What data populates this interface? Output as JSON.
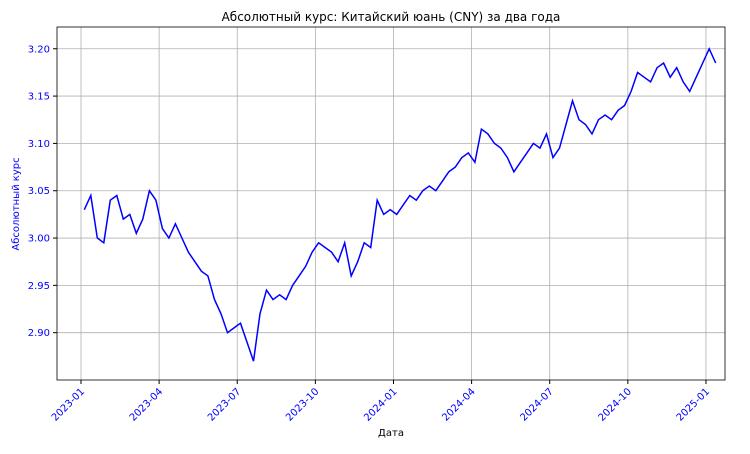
{
  "chart_data": {
    "type": "line",
    "title": "Абсолютный курс: Китайский юань (CNY) за два года",
    "xlabel": "Дата",
    "ylabel": "Абсолютный курс",
    "x": [
      "2023-01",
      "2023-01",
      "2023-01",
      "2023-01",
      "2023-02",
      "2023-02",
      "2023-02",
      "2023-02",
      "2023-03",
      "2023-03",
      "2023-03",
      "2023-03",
      "2023-04",
      "2023-04",
      "2023-04",
      "2023-04",
      "2023-05",
      "2023-05",
      "2023-05",
      "2023-05",
      "2023-06",
      "2023-06",
      "2023-06",
      "2023-06",
      "2023-07",
      "2023-07",
      "2023-07",
      "2023-07",
      "2023-08",
      "2023-08",
      "2023-08",
      "2023-08",
      "2023-09",
      "2023-09",
      "2023-09",
      "2023-09",
      "2023-10",
      "2023-10",
      "2023-10",
      "2023-10",
      "2023-11",
      "2023-11",
      "2023-11",
      "2023-11",
      "2023-12",
      "2023-12",
      "2023-12",
      "2023-12",
      "2024-01",
      "2024-01",
      "2024-01",
      "2024-01",
      "2024-02",
      "2024-02",
      "2024-02",
      "2024-02",
      "2024-03",
      "2024-03",
      "2024-03",
      "2024-03",
      "2024-04",
      "2024-04",
      "2024-04",
      "2024-04",
      "2024-05",
      "2024-05",
      "2024-05",
      "2024-05",
      "2024-06",
      "2024-06",
      "2024-06",
      "2024-06",
      "2024-07",
      "2024-07",
      "2024-07",
      "2024-07",
      "2024-08",
      "2024-08",
      "2024-08",
      "2024-08",
      "2024-09",
      "2024-09",
      "2024-09",
      "2024-09",
      "2024-10",
      "2024-10",
      "2024-10",
      "2024-10",
      "2024-11",
      "2024-11",
      "2024-11",
      "2024-11",
      "2024-12",
      "2024-12",
      "2024-12",
      "2024-12",
      "2025-01",
      "2025-01"
    ],
    "series": [
      {
        "name": "CNY",
        "color": "#0000ff",
        "values": [
          3.03,
          3.045,
          3.0,
          2.995,
          3.04,
          3.045,
          3.02,
          3.025,
          3.005,
          3.02,
          3.05,
          3.04,
          3.01,
          3.0,
          3.015,
          3.0,
          2.985,
          2.975,
          2.965,
          2.96,
          2.935,
          2.92,
          2.9,
          2.905,
          2.91,
          2.89,
          2.87,
          2.92,
          2.945,
          2.935,
          2.94,
          2.935,
          2.95,
          2.96,
          2.97,
          2.985,
          2.995,
          2.99,
          2.985,
          2.975,
          2.995,
          2.96,
          2.975,
          2.995,
          2.99,
          3.04,
          3.025,
          3.03,
          3.025,
          3.035,
          3.045,
          3.04,
          3.05,
          3.055,
          3.05,
          3.06,
          3.07,
          3.075,
          3.085,
          3.09,
          3.08,
          3.115,
          3.11,
          3.1,
          3.095,
          3.085,
          3.07,
          3.08,
          3.09,
          3.1,
          3.095,
          3.11,
          3.085,
          3.095,
          3.12,
          3.145,
          3.125,
          3.12,
          3.11,
          3.125,
          3.13,
          3.125,
          3.135,
          3.14,
          3.155,
          3.175,
          3.17,
          3.165,
          3.18,
          3.185,
          3.17,
          3.18,
          3.165,
          3.155,
          3.17,
          3.185,
          3.2,
          3.185
        ]
      }
    ],
    "xticks": [
      "2023-01",
      "2023-04",
      "2023-07",
      "2023-10",
      "2024-01",
      "2024-04",
      "2024-07",
      "2024-10",
      "2025-01"
    ],
    "ylim": [
      2.85,
      3.223
    ],
    "yticks": [
      {
        "value": 2.9,
        "label": "2.90"
      },
      2.95,
      {
        "value": 3.0,
        "label": "3.00"
      },
      3.05,
      {
        "value": 3.1,
        "label": "3.10"
      },
      3.15,
      {
        "value": 3.2,
        "label": "3.20"
      }
    ],
    "grid": true
  }
}
